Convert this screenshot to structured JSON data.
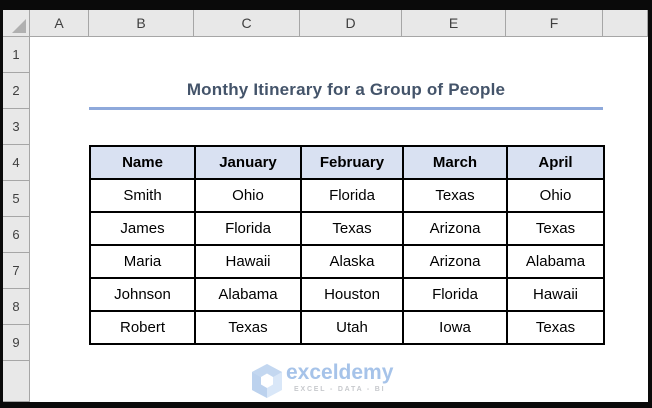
{
  "spreadsheet": {
    "column_headers": [
      "A",
      "B",
      "C",
      "D",
      "E",
      "F"
    ],
    "row_headers": [
      "1",
      "2",
      "3",
      "4",
      "5",
      "6",
      "7",
      "8",
      "9"
    ],
    "title": "Monthy Itinerary for a Group of People",
    "table": {
      "start_cell": "B4",
      "headers": [
        "Name",
        "January",
        "February",
        "March",
        "April"
      ],
      "rows": [
        [
          "Smith",
          "Ohio",
          "Florida",
          "Texas",
          "Ohio"
        ],
        [
          "James",
          "Florida",
          "Texas",
          "Arizona",
          "Texas"
        ],
        [
          "Maria",
          "Hawaii",
          "Alaska",
          "Arizona",
          "Alabama"
        ],
        [
          "Johnson",
          "Alabama",
          "Houston",
          "Florida",
          "Hawaii"
        ],
        [
          "Robert",
          "Texas",
          "Utah",
          "Iowa",
          "Texas"
        ]
      ]
    },
    "watermark": {
      "brand": "exceldemy",
      "tagline": "EXCEL - DATA - BI"
    },
    "colors": {
      "header_bg": "#E8E8E8",
      "header_border": "#A6A6A6",
      "header_text": "#3F3F3F",
      "select_all_triangle": "#B0B0B0",
      "title_text": "#44546A",
      "title_underline": "#8EA9DB",
      "table_header_bg": "#D9E1F2",
      "table_border": "#000000",
      "watermark_blue": "#A6C3E9",
      "watermark_gray": "#C7C9CD"
    }
  }
}
